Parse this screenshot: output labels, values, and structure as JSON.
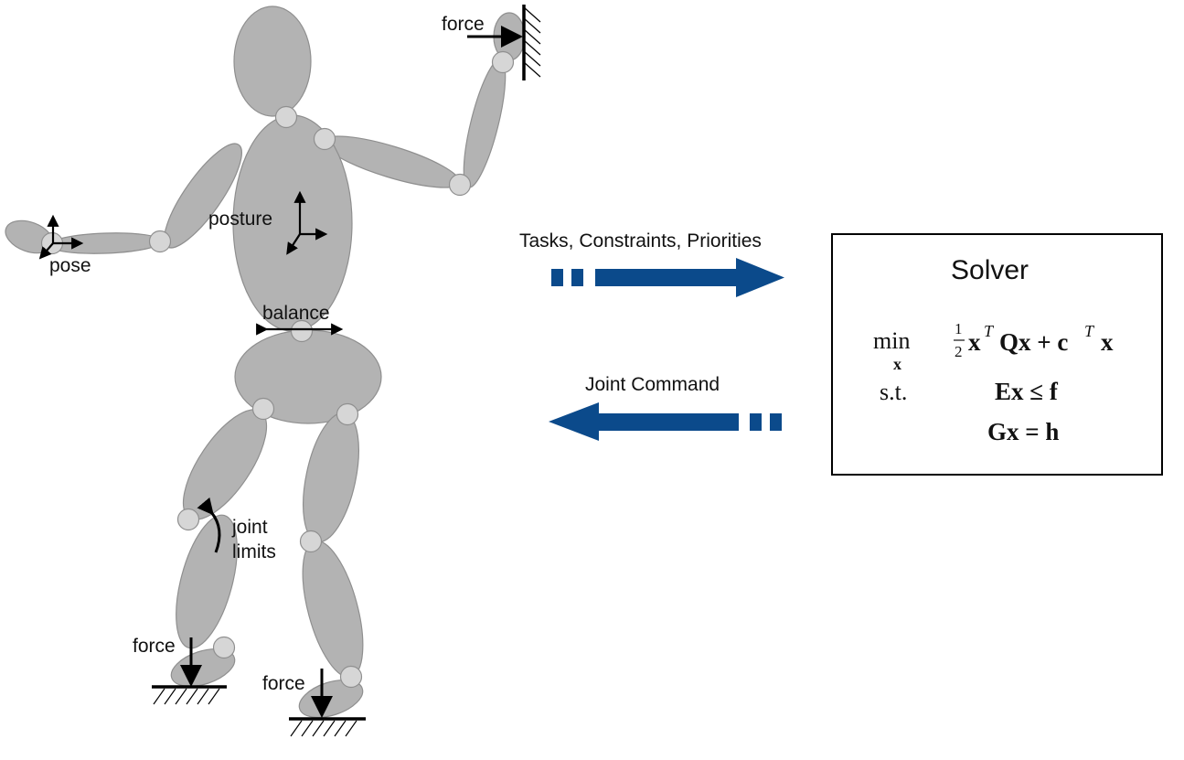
{
  "labels": {
    "force_hand": "force",
    "pose": "pose",
    "posture": "posture",
    "balance": "balance",
    "joint_limits_line1": "joint",
    "joint_limits_line2": "limits",
    "force_left_foot": "force",
    "force_right_foot": "force",
    "tasks": "Tasks, Constraints, Priorities",
    "joint_command": "Joint Command"
  },
  "solver": {
    "title": "Solver",
    "min": "min",
    "min_var": "x",
    "frac_num": "1",
    "frac_den": "2",
    "objective_x1": "x",
    "objective_T1": "T",
    "objective_Q": "Qx + c",
    "objective_T2": "T",
    "objective_x2": "x",
    "st": "s.t.",
    "ineq": "Ex ≤ f",
    "eq": "Gx = h"
  },
  "colors": {
    "arrow_blue": "#0b4a8b",
    "body_fill": "#b3b3b3",
    "joint_fill": "#d6d6d6"
  }
}
